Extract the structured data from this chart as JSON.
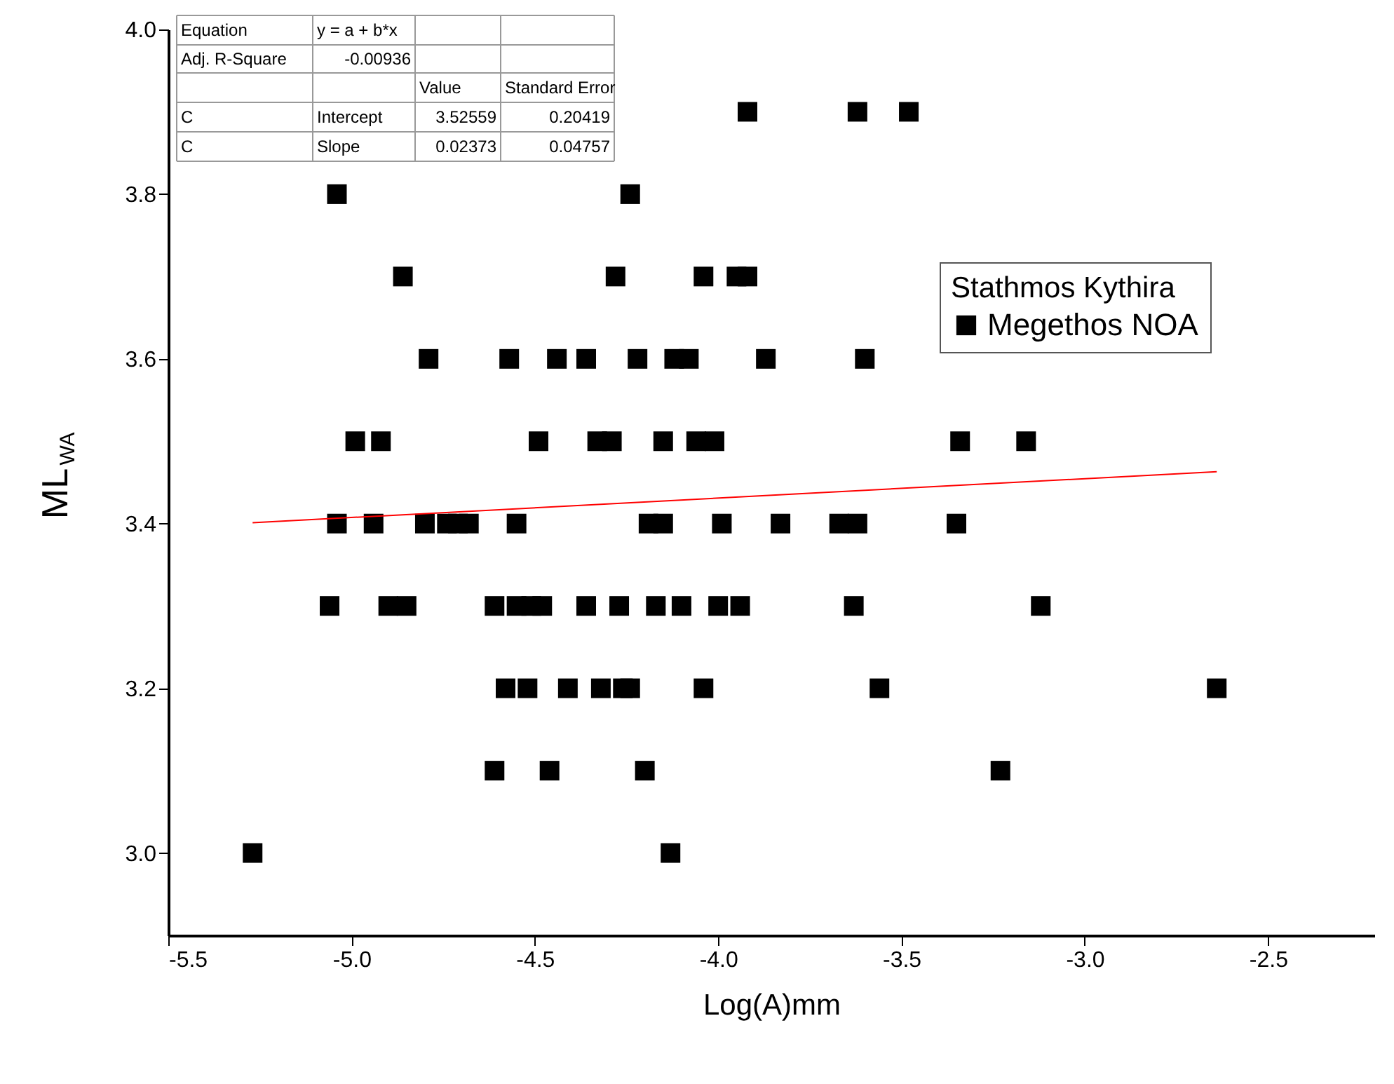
{
  "chart_data": {
    "type": "scatter",
    "xlabel": "Log(A)mm",
    "ylabel": "ML$_{WA}$",
    "legend_title": "Stathmos Kythira",
    "legend": "right",
    "grid": false,
    "xlim": [
      -5.5,
      -2.21
    ],
    "ylim": [
      2.9,
      4.0
    ],
    "xticks": [
      {
        "value": -5.5,
        "label": "-5.5"
      },
      {
        "value": -5.0,
        "label": "-5.0"
      },
      {
        "value": -4.5,
        "label": "-4.5"
      },
      {
        "value": -4.0,
        "label": "-4.0"
      },
      {
        "value": -3.5,
        "label": "-3.5"
      },
      {
        "value": -3.0,
        "label": "-3.0"
      },
      {
        "value": -2.5,
        "label": "-2.5"
      }
    ],
    "yticks": [
      {
        "value": 3.0,
        "label": "3.0"
      },
      {
        "value": 3.2,
        "label": "3.2"
      },
      {
        "value": 3.4,
        "label": "3.4"
      },
      {
        "value": 3.6,
        "label": "3.6"
      },
      {
        "value": 3.8,
        "label": "3.8"
      },
      {
        "value": 4.0,
        "label": "4.0"
      }
    ],
    "annotations": [
      "Equation",
      "y = a + b*x",
      "Adj. R-Square",
      "-0.00936",
      "Value",
      "Standard Error",
      "C",
      "Intercept",
      "3.52559",
      "0.20419",
      "C",
      "Slope",
      "0.02373",
      "0.04757"
    ],
    "series": [
      {
        "name": "Megethos NOA",
        "color": "#000000",
        "marker": "square",
        "x": [
          -3.92,
          -3.62,
          -3.48,
          -5.04,
          -4.24,
          -4.86,
          -4.28,
          -4.04,
          -3.95,
          -3.92,
          -4.79,
          -4.57,
          -4.44,
          -4.36,
          -4.22,
          -4.12,
          -4.08,
          -3.87,
          -3.6,
          -4.99,
          -4.92,
          -4.49,
          -4.33,
          -4.29,
          -4.15,
          -4.06,
          -4.01,
          -3.34,
          -3.16,
          -5.04,
          -4.94,
          -4.8,
          -4.74,
          -4.71,
          -4.68,
          -4.55,
          -4.19,
          -4.15,
          -3.99,
          -3.83,
          -3.67,
          -3.62,
          -3.35,
          -5.06,
          -4.9,
          -4.85,
          -4.61,
          -4.55,
          -4.51,
          -4.48,
          -4.36,
          -4.27,
          -4.17,
          -4.1,
          -4.0,
          -3.94,
          -3.63,
          -3.12,
          -4.58,
          -4.52,
          -4.41,
          -4.32,
          -4.26,
          -4.24,
          -4.04,
          -3.56,
          -2.64,
          -4.61,
          -4.46,
          -4.2,
          -3.23,
          -5.27,
          -4.13
        ],
        "values": [
          3.9,
          3.9,
          3.9,
          3.8,
          3.8,
          3.7,
          3.7,
          3.7,
          3.7,
          3.7,
          3.6,
          3.6,
          3.6,
          3.6,
          3.6,
          3.6,
          3.6,
          3.6,
          3.6,
          3.5,
          3.5,
          3.5,
          3.5,
          3.5,
          3.5,
          3.5,
          3.5,
          3.5,
          3.5,
          3.4,
          3.4,
          3.4,
          3.4,
          3.4,
          3.4,
          3.4,
          3.4,
          3.4,
          3.4,
          3.4,
          3.4,
          3.4,
          3.4,
          3.3,
          3.3,
          3.3,
          3.3,
          3.3,
          3.3,
          3.3,
          3.3,
          3.3,
          3.3,
          3.3,
          3.3,
          3.3,
          3.3,
          3.3,
          3.2,
          3.2,
          3.2,
          3.2,
          3.2,
          3.2,
          3.2,
          3.2,
          3.2,
          3.1,
          3.1,
          3.1,
          3.1,
          3.0,
          3.0
        ]
      },
      {
        "type": "line",
        "marker": "none",
        "color": "#ff0000",
        "x": [
          -5.27,
          -2.64
        ],
        "values": [
          3.401,
          3.463
        ]
      }
    ]
  }
}
